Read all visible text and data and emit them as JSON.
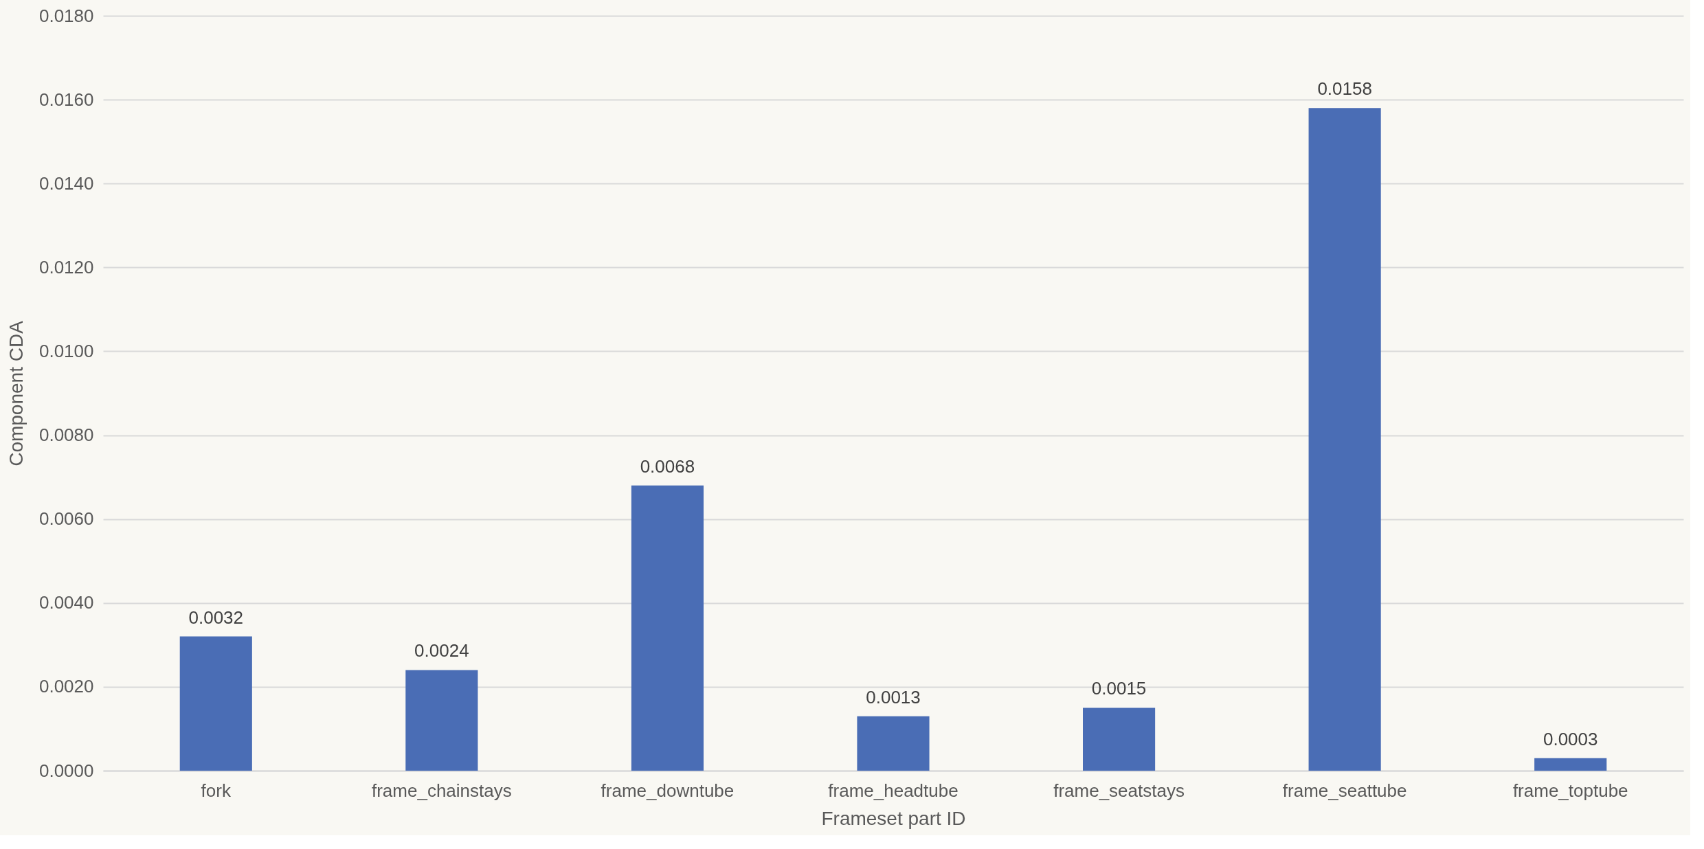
{
  "chart_data": {
    "type": "bar",
    "xlabel": "Frameset part ID",
    "ylabel": "Component CDA",
    "categories": [
      "fork",
      "frame_chainstays",
      "frame_downtube",
      "frame_headtube",
      "frame_seatstays",
      "frame_seattube",
      "frame_toptube"
    ],
    "values": [
      0.0032,
      0.0024,
      0.0068,
      0.0013,
      0.0015,
      0.0158,
      0.0003
    ],
    "color": "#4a6db5",
    "ylim": [
      0,
      0.018
    ],
    "yticks": [
      {
        "value": 0,
        "label": "0.0000"
      },
      {
        "value": 0.002,
        "label": "0.0020"
      },
      {
        "value": 0.004,
        "label": "0.0040"
      },
      {
        "value": 0.006,
        "label": "0.0060"
      },
      {
        "value": 0.008,
        "label": "0.0080"
      },
      {
        "value": 0.01,
        "label": "0.0100"
      },
      {
        "value": 0.012,
        "label": "0.0120"
      },
      {
        "value": 0.014,
        "label": "0.0140"
      },
      {
        "value": 0.016,
        "label": "0.0160"
      },
      {
        "value": 0.018,
        "label": "0.0180"
      }
    ],
    "grid": "y",
    "data_labels": true
  }
}
